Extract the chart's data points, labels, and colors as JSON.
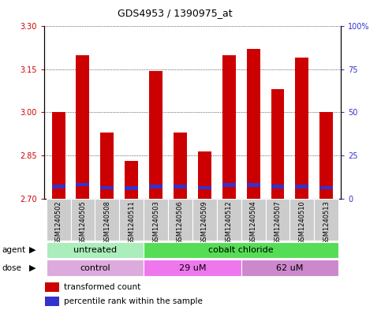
{
  "title": "GDS4953 / 1390975_at",
  "samples": [
    "GSM1240502",
    "GSM1240505",
    "GSM1240508",
    "GSM1240511",
    "GSM1240503",
    "GSM1240506",
    "GSM1240509",
    "GSM1240512",
    "GSM1240504",
    "GSM1240507",
    "GSM1240510",
    "GSM1240513"
  ],
  "transformed_counts": [
    3.0,
    3.2,
    2.93,
    2.83,
    3.145,
    2.93,
    2.865,
    3.2,
    3.22,
    3.08,
    3.19,
    3.0
  ],
  "percentile_values": [
    2.742,
    2.748,
    2.737,
    2.736,
    2.742,
    2.741,
    2.737,
    2.746,
    2.746,
    2.741,
    2.741,
    2.737
  ],
  "ylim_left": [
    2.7,
    3.3
  ],
  "yticks_left": [
    2.7,
    2.85,
    3.0,
    3.15,
    3.3
  ],
  "yticks_right": [
    0,
    25,
    50,
    75,
    100
  ],
  "bar_bottom": 2.7,
  "bar_color": "#cc0000",
  "percentile_color": "#3333cc",
  "agent_groups": [
    {
      "label": "untreated",
      "start": 0,
      "end": 4,
      "color": "#aaeebb"
    },
    {
      "label": "cobalt chloride",
      "start": 4,
      "end": 12,
      "color": "#55dd55"
    }
  ],
  "dose_groups": [
    {
      "label": "control",
      "start": 0,
      "end": 4,
      "color": "#ddaadd"
    },
    {
      "label": "29 uM",
      "start": 4,
      "end": 8,
      "color": "#ee77ee"
    },
    {
      "label": "62 uM",
      "start": 8,
      "end": 12,
      "color": "#cc88cc"
    }
  ],
  "legend_bar_color": "#cc0000",
  "legend_pct_color": "#3333cc",
  "tick_label_color_left": "#cc0000",
  "tick_label_color_right": "#3333cc",
  "grid_color": "black",
  "background_color": "#ffffff",
  "plot_bg_color": "#ffffff",
  "label_bg_color": "#cccccc",
  "bar_width": 0.55
}
